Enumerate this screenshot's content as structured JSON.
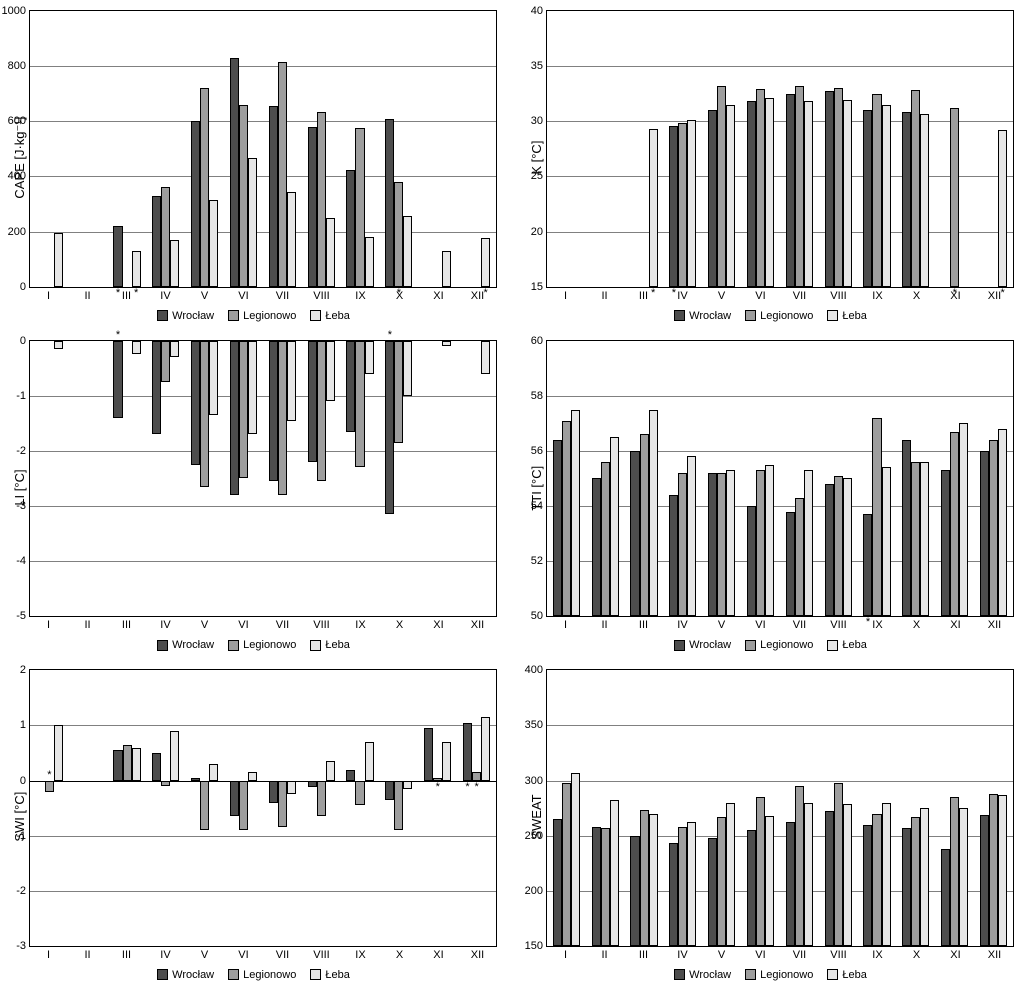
{
  "categories": [
    "I",
    "II",
    "III",
    "IV",
    "V",
    "VI",
    "VII",
    "VIII",
    "IX",
    "X",
    "XI",
    "XII"
  ],
  "series_names": [
    "Wrocław",
    "Legionowo",
    "Łeba"
  ],
  "series_colors": [
    "#4d4d4d",
    "#9e9e9e",
    "#e6e6e6"
  ],
  "grid_color": "#808080",
  "background_color": "#ffffff",
  "axis_color": "#000000",
  "font_size_axis": 11,
  "font_size_label": 13,
  "bar_group_width": 0.7,
  "charts": [
    {
      "id": "cape",
      "ylabel": "CAPE [J·kg⁻¹]",
      "ymin": 0,
      "ymax": 1000,
      "ystep": 200,
      "data": [
        [
          null,
          null,
          220,
          330,
          600,
          830,
          655,
          580,
          425,
          610,
          null,
          null
        ],
        [
          null,
          null,
          null,
          360,
          720,
          660,
          815,
          635,
          575,
          380,
          null,
          null
        ],
        [
          195,
          null,
          130,
          170,
          315,
          465,
          345,
          250,
          180,
          255,
          130,
          175
        ]
      ],
      "annotations": [
        {
          "cat": 2,
          "series": 0,
          "text": "*",
          "pos": "below"
        },
        {
          "cat": 2,
          "series": 2,
          "text": "*",
          "pos": "below"
        },
        {
          "cat": 9,
          "series": 1,
          "text": "*",
          "pos": "below"
        },
        {
          "cat": 11,
          "series": 2,
          "text": "*",
          "pos": "below"
        }
      ]
    },
    {
      "id": "k",
      "ylabel": "K [°C]",
      "ymin": 15,
      "ymax": 40,
      "ystep": 5,
      "data": [
        [
          null,
          null,
          null,
          29.6,
          31.0,
          31.8,
          32.5,
          32.7,
          31.0,
          30.8,
          null,
          null
        ],
        [
          null,
          null,
          null,
          29.8,
          33.2,
          32.9,
          33.2,
          33.0,
          32.5,
          32.8,
          31.2,
          null
        ],
        [
          null,
          null,
          29.3,
          30.1,
          31.5,
          32.1,
          31.8,
          31.9,
          31.5,
          30.7,
          null,
          29.2
        ]
      ],
      "annotations": [
        {
          "cat": 2,
          "series": 2,
          "text": "*",
          "pos": "below"
        },
        {
          "cat": 3,
          "series": 0,
          "text": "*",
          "pos": "below"
        },
        {
          "cat": 10,
          "series": 1,
          "text": "*",
          "pos": "below"
        },
        {
          "cat": 11,
          "series": 2,
          "text": "*",
          "pos": "below"
        }
      ]
    },
    {
      "id": "li",
      "ylabel": "LI [°C]",
      "ymin": -5,
      "ymax": 0,
      "ystep": 1,
      "data": [
        [
          null,
          null,
          -1.4,
          -1.7,
          -2.25,
          -2.8,
          -2.55,
          -2.2,
          -1.65,
          -3.15,
          null,
          null
        ],
        [
          null,
          null,
          null,
          -0.75,
          -2.65,
          -2.5,
          -2.8,
          -2.55,
          -2.3,
          -1.85,
          null,
          null
        ],
        [
          -0.15,
          null,
          -0.25,
          -0.3,
          -1.35,
          -1.7,
          -1.45,
          -1.1,
          -0.6,
          -1.0,
          -0.1,
          -0.6
        ]
      ],
      "annotations": [
        {
          "cat": 2,
          "series": 0,
          "text": "*",
          "pos": "above"
        },
        {
          "cat": 9,
          "series": 0,
          "text": "*",
          "pos": "above"
        }
      ]
    },
    {
      "id": "tti",
      "ylabel": "TTI [°C]",
      "ymin": 50,
      "ymax": 60,
      "ystep": 2,
      "data": [
        [
          56.4,
          55.0,
          56.0,
          54.4,
          55.2,
          54.0,
          53.8,
          54.8,
          53.7,
          56.4,
          55.3,
          56.0
        ],
        [
          57.1,
          55.6,
          56.6,
          55.2,
          55.2,
          55.3,
          54.3,
          55.1,
          57.2,
          55.6,
          56.7,
          56.4
        ],
        [
          57.5,
          56.5,
          57.5,
          55.8,
          55.3,
          55.5,
          55.3,
          55.0,
          55.4,
          55.6,
          57.0,
          56.8
        ]
      ],
      "annotations": [
        {
          "cat": 8,
          "series": 0,
          "text": "*",
          "pos": "below"
        }
      ]
    },
    {
      "id": "swi",
      "ylabel": "SWI [°C]",
      "ymin": -3,
      "ymax": 2,
      "ystep": 1,
      "data": [
        [
          null,
          null,
          0.55,
          0.5,
          0.05,
          -0.65,
          -0.4,
          -0.12,
          0.2,
          -0.35,
          0.95,
          1.05
        ],
        [
          -0.2,
          null,
          0.65,
          -0.1,
          -0.9,
          -0.9,
          -0.85,
          -0.65,
          -0.45,
          -0.9,
          0.05,
          0.15
        ],
        [
          1.0,
          null,
          0.6,
          0.9,
          0.3,
          0.15,
          -0.25,
          0.35,
          0.7,
          -0.15,
          0.7,
          1.15
        ]
      ],
      "annotations": [
        {
          "cat": 0,
          "series": 1,
          "text": "*",
          "pos": "above"
        },
        {
          "cat": 10,
          "series": 1,
          "text": "*",
          "pos": "below"
        },
        {
          "cat": 11,
          "series": 0,
          "text": "*",
          "pos": "below"
        },
        {
          "cat": 11,
          "series": 1,
          "text": "*",
          "pos": "below"
        }
      ]
    },
    {
      "id": "sweat",
      "ylabel": "SWEAT",
      "ymin": 150,
      "ymax": 400,
      "ystep": 50,
      "data": [
        [
          265,
          258,
          250,
          243,
          248,
          255,
          262,
          272,
          260,
          257,
          238,
          269
        ],
        [
          298,
          257,
          273,
          258,
          267,
          285,
          295,
          298,
          270,
          267,
          285,
          288
        ],
        [
          307,
          282,
          270,
          262,
          280,
          268,
          280,
          279,
          280,
          275,
          275,
          287
        ]
      ],
      "annotations": []
    }
  ]
}
